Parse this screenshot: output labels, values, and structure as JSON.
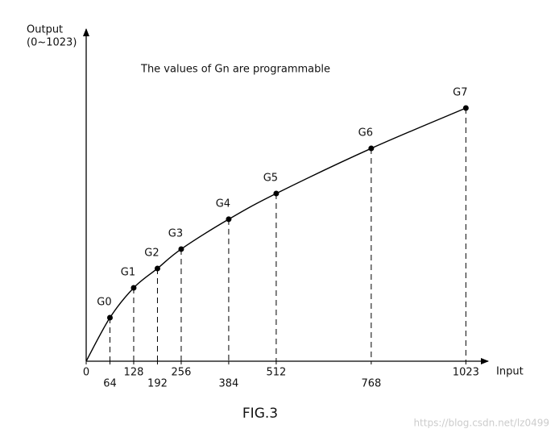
{
  "chart_data": {
    "type": "line",
    "title": "The values of Gn are programmable",
    "y_label": "Output",
    "y_label_range": "(0~1023)",
    "x_label": "Input",
    "caption": "FIG.3",
    "watermark": "https://blog.csdn.net/lz0499",
    "x": [
      0,
      64,
      128,
      192,
      256,
      384,
      512,
      768,
      1023
    ],
    "series": [
      {
        "values": [
          0,
          137,
          231,
          292,
          353,
          447,
          528,
          670,
          797
        ],
        "color": "#000000"
      }
    ],
    "point_labels": [
      null,
      "G0",
      "G1",
      "G2",
      "G3",
      "G4",
      "G5",
      "G6",
      "G7"
    ],
    "xlim": [
      0,
      1070
    ],
    "ylim": [
      0,
      1023
    ],
    "xticks": [
      0,
      64,
      128,
      192,
      256,
      384,
      512,
      768,
      1023
    ]
  }
}
